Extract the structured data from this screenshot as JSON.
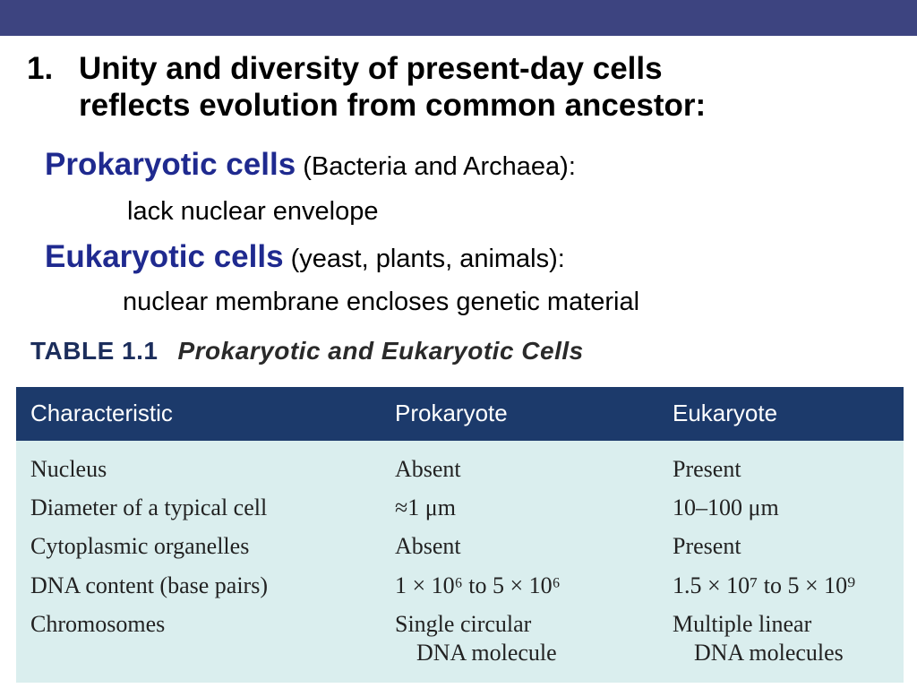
{
  "heading": {
    "number": "1.",
    "line1": "Unity and diversity of present-day cells",
    "line2": "reflects evolution from common ancestor:"
  },
  "prokaryotic": {
    "term": "Prokaryotic cells",
    "examples": "(Bacteria and Archaea):",
    "description": "lack nuclear envelope"
  },
  "eukaryotic": {
    "term": "Eukaryotic cells",
    "examples": "(yeast, plants, animals):",
    "description": "nuclear membrane encloses genetic material"
  },
  "table": {
    "label": "TABLE 1.1",
    "caption": "Prokaryotic and Eukaryotic Cells",
    "headers": [
      "Characteristic",
      "Prokaryote",
      "Eukaryote"
    ],
    "rows": [
      {
        "characteristic": "Nucleus",
        "prokaryote": "Absent",
        "eukaryote": "Present"
      },
      {
        "characteristic": "Diameter of a typical cell",
        "prokaryote": "≈1 μm",
        "eukaryote": "10–100 μm"
      },
      {
        "characteristic": "Cytoplasmic organelles",
        "prokaryote": "Absent",
        "eukaryote": "Present"
      },
      {
        "characteristic": "DNA content (base pairs)",
        "prokaryote": "1 × 10⁶ to 5 × 10⁶",
        "eukaryote": "1.5 × 10⁷ to 5 × 10⁹"
      },
      {
        "characteristic": "Chromosomes",
        "prokaryote": "Single circular",
        "prokaryote_2": "DNA molecule",
        "eukaryote": "Multiple linear",
        "eukaryote_2": "DNA molecules"
      }
    ]
  },
  "colors": {
    "top_bar": "#3d4480",
    "term_blue": "#1f2a8f",
    "table_header": "#1c3a6b",
    "table_body": "#daeeee"
  }
}
